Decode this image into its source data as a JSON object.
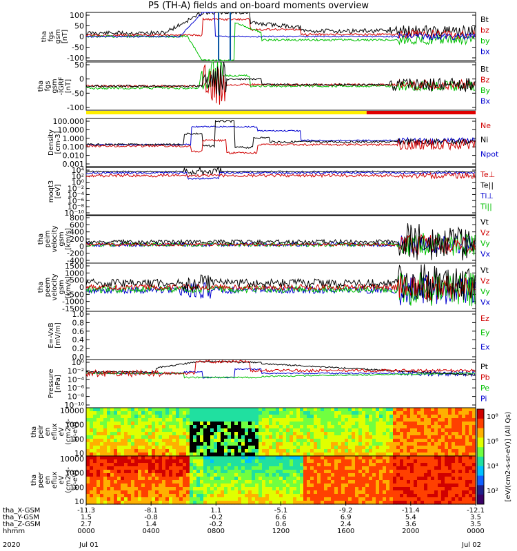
{
  "title": "P5 (TH-A) fields and on-board moments overview",
  "chart_data": {
    "type": "line",
    "x_time_ticks": [
      "0000",
      "0400",
      "0800",
      "1200",
      "1600",
      "2000",
      "0000"
    ],
    "date_labels": [
      "Jul 01",
      "Jul 02"
    ],
    "year": "2020",
    "ephemeris_rows": [
      {
        "label": "tha_X-GSM",
        "values": [
          "-11.3",
          "-8.1",
          "1.1",
          "-5.1",
          "-9.2",
          "-11.4",
          "-12.1"
        ]
      },
      {
        "label": "tha_Y-GSM",
        "values": [
          "1.5",
          "-0.8",
          "-0.2",
          "6.6",
          "6.9",
          "5.4",
          "3.5"
        ]
      },
      {
        "label": "tha_Z-GSM",
        "values": [
          "2.7",
          "1.4",
          "-0.2",
          "0.6",
          "2.4",
          "3.6",
          "3.5"
        ]
      },
      {
        "label": "hhmm",
        "values": [
          "0000",
          "0400",
          "0800",
          "1200",
          "1600",
          "2000",
          "0000"
        ]
      }
    ],
    "panels": [
      {
        "id": "fgs",
        "ylabel": [
          "tha",
          "fgs",
          "gsm",
          "[nT]"
        ],
        "ticks": [
          "100",
          "50",
          "0",
          "-50",
          "-100"
        ],
        "series": [
          {
            "name": "Bt",
            "color": "#000000"
          },
          {
            "name": "bz",
            "color": "#d00000"
          },
          {
            "name": "by",
            "color": "#00c000"
          },
          {
            "name": "bx",
            "color": "#0000d0"
          }
        ]
      },
      {
        "id": "fgs2",
        "ylabel": [
          "tha",
          "fgs",
          "gsm",
          "-IGRF",
          "[nT]"
        ],
        "ticks": [
          "50",
          "0",
          "-50",
          "-100"
        ],
        "series": [
          {
            "name": "Bt",
            "color": "#000000"
          },
          {
            "name": "Bz",
            "color": "#d00000"
          },
          {
            "name": "By",
            "color": "#00c000"
          },
          {
            "name": "Bx",
            "color": "#0000d0"
          }
        ]
      },
      {
        "id": "density",
        "ylabel": [
          "Density",
          "[cm-3]"
        ],
        "ticks": [
          "100.000",
          "10.000",
          "1.000",
          "0.100",
          "0.010",
          "0.001"
        ],
        "series": [
          {
            "name": "Ne",
            "color": "#d00000"
          },
          {
            "name": "Ni",
            "color": "#000000"
          },
          {
            "name": "Npot",
            "color": "#0000d0"
          }
        ]
      },
      {
        "id": "temp",
        "ylabel": [
          "moqt3",
          "[eV]"
        ],
        "ticks": [
          "10⁴",
          "10²",
          "10⁰",
          "10⁻²",
          "10⁻⁴",
          "10⁻⁶",
          "10⁻⁸",
          "10⁻¹⁰"
        ],
        "series": [
          {
            "name": "Te⊥",
            "color": "#d00000"
          },
          {
            "name": "Te||",
            "color": "#000000"
          },
          {
            "name": "Ti⊥",
            "color": "#0000d0"
          },
          {
            "name": "Ti||",
            "color": "#00c000"
          }
        ]
      },
      {
        "id": "peim",
        "ylabel": [
          "tha",
          "peim",
          "velocity",
          "gsm",
          "[km/s]"
        ],
        "ticks": [
          "800",
          "600",
          "400",
          "200",
          "0",
          "-200",
          "-400"
        ],
        "series": [
          {
            "name": "Vt",
            "color": "#000000"
          },
          {
            "name": "Vz",
            "color": "#d00000"
          },
          {
            "name": "Vy",
            "color": "#00c000"
          },
          {
            "name": "Vx",
            "color": "#0000d0"
          }
        ]
      },
      {
        "id": "peem",
        "ylabel": [
          "tha",
          "peem",
          "velocity",
          "gsm",
          "[km/s]"
        ],
        "ticks": [
          "1500",
          "1000",
          "500",
          "0",
          "-500",
          "-1000",
          "-1500"
        ],
        "series": [
          {
            "name": "Vt",
            "color": "#000000"
          },
          {
            "name": "Vz",
            "color": "#d00000"
          },
          {
            "name": "Vy",
            "color": "#00c000"
          },
          {
            "name": "Vx",
            "color": "#0000d0"
          }
        ]
      },
      {
        "id": "efield",
        "ylabel": [
          "E=-VxB",
          "[mV/m]"
        ],
        "ticks": [
          "1.0",
          "0.8",
          "0.6",
          "0.4",
          "0.2",
          "0.0"
        ],
        "series": [
          {
            "name": "Ez",
            "color": "#d00000"
          },
          {
            "name": "Ey",
            "color": "#00c000"
          },
          {
            "name": "Ex",
            "color": "#0000d0"
          }
        ]
      },
      {
        "id": "pressure",
        "ylabel": [
          "Pressure",
          "[nPa]"
        ],
        "ticks": [
          "10⁰",
          "10⁻²",
          "10⁻⁴",
          "10⁻⁶",
          "10⁻⁸",
          "10⁻¹⁰"
        ],
        "series": [
          {
            "name": "Pt",
            "color": "#000000"
          },
          {
            "name": "Pb",
            "color": "#d00000"
          },
          {
            "name": "Pe",
            "color": "#00c000"
          },
          {
            "name": "Pi",
            "color": "#0000d0"
          }
        ]
      },
      {
        "id": "peir",
        "ylabel": [
          "tha",
          "peir",
          "en",
          "eflux",
          "eV",
          "(cm2-s-",
          "sr-eV)"
        ],
        "ticks": [
          "10000",
          "1000",
          "100",
          "10"
        ]
      },
      {
        "id": "peer",
        "ylabel": [
          "tha",
          "peer",
          "en",
          "eflux",
          "eV",
          "(cm2-s-",
          "sr-eV)"
        ],
        "ticks": [
          "10000",
          "1000",
          "100",
          "10"
        ]
      }
    ],
    "colorbar": {
      "label": "[eV/(cm2-s-sr-eV)] (All Qs)",
      "ticks": [
        "10⁸",
        "10⁶",
        "10⁴",
        "10²"
      ]
    }
  }
}
